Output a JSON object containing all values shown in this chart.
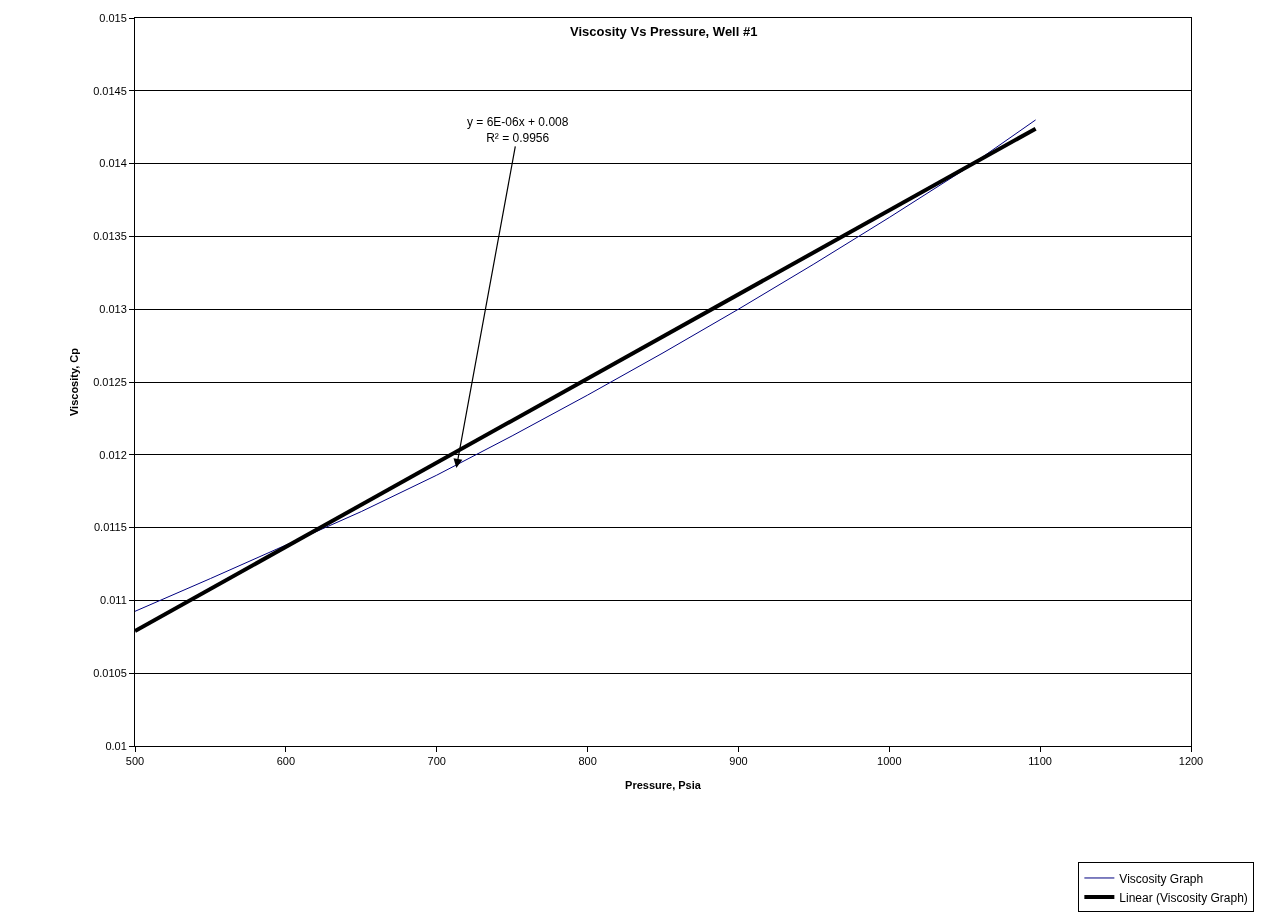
{
  "chart_data": {
    "type": "line",
    "title": "Viscosity Vs Pressure, Well #1",
    "xlabel": "Pressure, Psia",
    "ylabel": "Viscosity, Cp",
    "xlim": [
      500,
      1200
    ],
    "xticks": [
      500,
      600,
      700,
      800,
      900,
      1000,
      1100,
      1200
    ],
    "ylim": [
      0.01,
      0.015
    ],
    "yticks": [
      0.01,
      0.0105,
      0.011,
      0.0115,
      0.012,
      0.0125,
      0.013,
      0.0135,
      0.014,
      0.0145,
      0.015
    ],
    "grid": "y",
    "legend": "bottom right",
    "marker": "none",
    "line_style": "solid",
    "series": [
      {
        "name": "Viscosity Graph",
        "color": "#000080",
        "x": [
          500,
          550,
          600,
          650,
          700,
          750,
          800,
          850,
          900,
          950,
          1000,
          1050,
          1097
        ],
        "values": [
          0.010925,
          0.01115,
          0.01138,
          0.01161,
          0.01186,
          0.01213,
          0.01241,
          0.0127,
          0.013,
          0.01331,
          0.01363,
          0.01396,
          0.0143
        ]
      },
      {
        "name": "Linear (Viscosity Graph)",
        "color": "#000000",
        "type": "line",
        "x": [
          500,
          1097
        ],
        "values": [
          0.01079,
          0.01424
        ]
      }
    ],
    "annotations": [
      {
        "text": "y = 6E-06x + 0.008\nR² = 0.9956",
        "x": 713,
        "y": 0.01191
      }
    ]
  }
}
